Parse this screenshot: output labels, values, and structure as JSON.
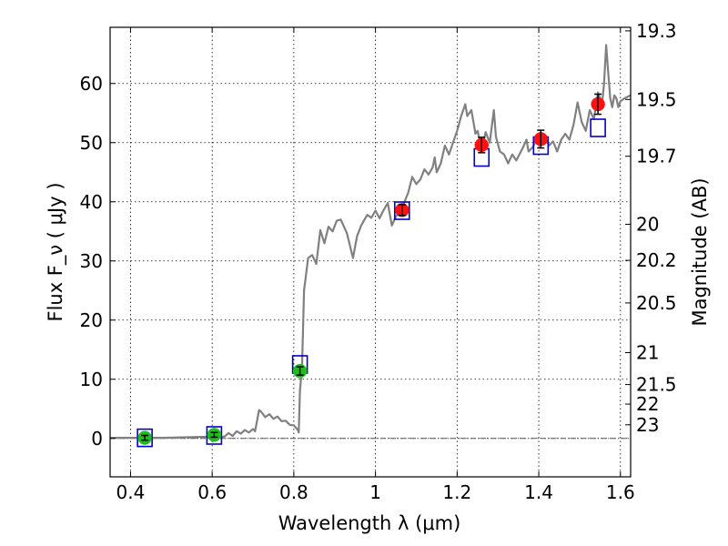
{
  "chart_data": {
    "type": "scatter",
    "xlabel": "Wavelength  λ (μm)",
    "ylabel": "Flux  F_ν  ( μJy )",
    "y2label": "Magnitude (AB)",
    "xlim": [
      0.35,
      1.625
    ],
    "ylim": [
      -6.5,
      69.5
    ],
    "grid": true,
    "x_ticks": [
      0.4,
      0.6,
      0.8,
      1.0,
      1.2,
      1.4,
      1.6
    ],
    "x_tick_labels": [
      "0.4",
      "0.6",
      "0.8",
      "1",
      "1.2",
      "1.4",
      "1.6"
    ],
    "y_ticks": [
      0,
      10,
      20,
      30,
      40,
      50,
      60
    ],
    "y_tick_labels": [
      "0",
      "10",
      "20",
      "30",
      "40",
      "50",
      "60"
    ],
    "magnitude_ticks": [
      {
        "label": "19.3",
        "flux": 68.9
      },
      {
        "label": "19.5",
        "flux": 57.3
      },
      {
        "label": "19.7",
        "flux": 47.7
      },
      {
        "label": "20",
        "flux": 36.2
      },
      {
        "label": "20.2",
        "flux": 30.1
      },
      {
        "label": "20.5",
        "flux": 22.9
      },
      {
        "label": "21",
        "flux": 14.5
      },
      {
        "label": "21.5",
        "flux": 9.1
      },
      {
        "label": "22",
        "flux": 5.8
      },
      {
        "label": "23",
        "flux": 2.3
      }
    ],
    "zero_line": 0,
    "series": [
      {
        "kind": "line",
        "color": "#808080",
        "points": [
          [
            0.35,
            0.1
          ],
          [
            0.42,
            0.1
          ],
          [
            0.48,
            0.1
          ],
          [
            0.55,
            0.2
          ],
          [
            0.6,
            0.3
          ],
          [
            0.63,
            0.3
          ],
          [
            0.64,
            0.9
          ],
          [
            0.65,
            0.4
          ],
          [
            0.66,
            1.2
          ],
          [
            0.67,
            0.8
          ],
          [
            0.68,
            1.4
          ],
          [
            0.69,
            1.0
          ],
          [
            0.7,
            1.6
          ],
          [
            0.705,
            1.2
          ],
          [
            0.71,
            3.0
          ],
          [
            0.715,
            4.8
          ],
          [
            0.72,
            4.5
          ],
          [
            0.73,
            3.6
          ],
          [
            0.74,
            4.1
          ],
          [
            0.75,
            3.3
          ],
          [
            0.76,
            3.7
          ],
          [
            0.77,
            2.9
          ],
          [
            0.78,
            3.0
          ],
          [
            0.79,
            2.3
          ],
          [
            0.8,
            2.2
          ],
          [
            0.81,
            1.4
          ],
          [
            0.812,
            1.0
          ],
          [
            0.815,
            8.0
          ],
          [
            0.82,
            12.0
          ],
          [
            0.825,
            25.0
          ],
          [
            0.835,
            30.5
          ],
          [
            0.845,
            31.0
          ],
          [
            0.855,
            29.5
          ],
          [
            0.865,
            35.2
          ],
          [
            0.875,
            33.0
          ],
          [
            0.885,
            35.8
          ],
          [
            0.895,
            35.0
          ],
          [
            0.905,
            36.8
          ],
          [
            0.915,
            37.0
          ],
          [
            0.93,
            34.7
          ],
          [
            0.945,
            30.5
          ],
          [
            0.955,
            34.2
          ],
          [
            0.965,
            36.0
          ],
          [
            0.98,
            37.8
          ],
          [
            0.99,
            37.3
          ],
          [
            1.0,
            38.5
          ],
          [
            1.01,
            37.2
          ],
          [
            1.02,
            38.6
          ],
          [
            1.03,
            39.8
          ],
          [
            1.04,
            36.0
          ],
          [
            1.05,
            37.5
          ],
          [
            1.065,
            39.0
          ],
          [
            1.08,
            41.5
          ],
          [
            1.09,
            44.2
          ],
          [
            1.1,
            43.0
          ],
          [
            1.11,
            43.8
          ],
          [
            1.12,
            45.5
          ],
          [
            1.13,
            44.6
          ],
          [
            1.14,
            45.8
          ],
          [
            1.145,
            47.5
          ],
          [
            1.15,
            45.0
          ],
          [
            1.16,
            46.5
          ],
          [
            1.17,
            49.5
          ],
          [
            1.18,
            48.0
          ],
          [
            1.19,
            50.0
          ],
          [
            1.2,
            52.0
          ],
          [
            1.21,
            54.5
          ],
          [
            1.22,
            56.5
          ],
          [
            1.225,
            54.5
          ],
          [
            1.235,
            55.5
          ],
          [
            1.245,
            51.5
          ],
          [
            1.25,
            52.0
          ],
          [
            1.26,
            49.0
          ],
          [
            1.27,
            51.8
          ],
          [
            1.28,
            50.0
          ],
          [
            1.29,
            55.5
          ],
          [
            1.295,
            51.0
          ],
          [
            1.305,
            48.5
          ],
          [
            1.315,
            48.0
          ],
          [
            1.325,
            46.5
          ],
          [
            1.335,
            48.0
          ],
          [
            1.345,
            47.0
          ],
          [
            1.36,
            49.0
          ],
          [
            1.37,
            50.5
          ],
          [
            1.375,
            48.5
          ],
          [
            1.385,
            49.2
          ],
          [
            1.395,
            50.5
          ],
          [
            1.405,
            50.8
          ],
          [
            1.415,
            51.0
          ],
          [
            1.425,
            49.5
          ],
          [
            1.435,
            50.2
          ],
          [
            1.445,
            48.5
          ],
          [
            1.455,
            50.5
          ],
          [
            1.465,
            51.5
          ],
          [
            1.475,
            50.5
          ],
          [
            1.485,
            53.0
          ],
          [
            1.495,
            56.8
          ],
          [
            1.505,
            53.5
          ],
          [
            1.515,
            52.0
          ],
          [
            1.525,
            55.5
          ],
          [
            1.535,
            54.0
          ],
          [
            1.545,
            58.5
          ],
          [
            1.555,
            56.5
          ],
          [
            1.56,
            60.0
          ],
          [
            1.565,
            66.5
          ],
          [
            1.57,
            62.0
          ],
          [
            1.575,
            57.5
          ],
          [
            1.58,
            56.0
          ],
          [
            1.585,
            58.0
          ],
          [
            1.59,
            57.5
          ],
          [
            1.595,
            56.0
          ],
          [
            1.6,
            57.0
          ],
          [
            1.61,
            57.5
          ],
          [
            1.625,
            58.0
          ]
        ]
      },
      {
        "kind": "open-square",
        "color": "#0000cc",
        "points": [
          [
            0.435,
            0.1
          ],
          [
            0.605,
            0.5
          ],
          [
            0.815,
            12.5
          ],
          [
            1.065,
            38.5
          ],
          [
            1.26,
            47.5
          ],
          [
            1.405,
            49.5
          ],
          [
            1.545,
            52.5
          ]
        ]
      },
      {
        "kind": "filled-circle",
        "color": "#22bb22",
        "points": [
          [
            0.435,
            0.1
          ],
          [
            0.605,
            0.6
          ],
          [
            0.815,
            11.4
          ]
        ],
        "yerr": [
          0.4,
          0.4,
          0.7
        ]
      },
      {
        "kind": "filled-circle",
        "color": "#ff1111",
        "points": [
          [
            1.065,
            38.6
          ],
          [
            1.26,
            49.6
          ],
          [
            1.405,
            50.6
          ],
          [
            1.545,
            56.5
          ]
        ],
        "yerr": [
          0.9,
          1.3,
          1.5,
          1.7
        ]
      }
    ]
  }
}
